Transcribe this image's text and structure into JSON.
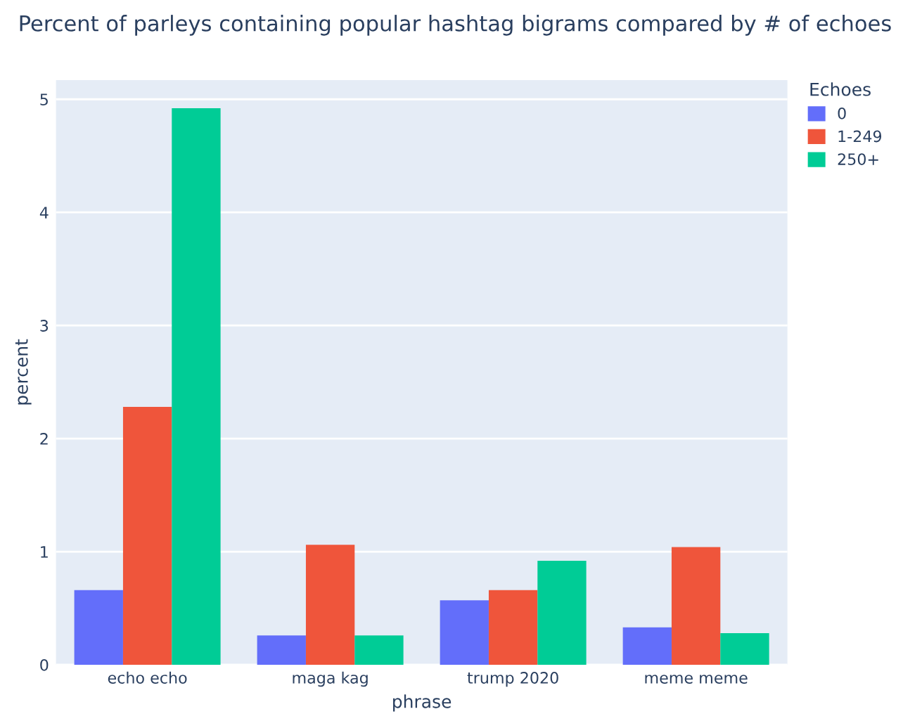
{
  "chart_data": {
    "type": "bar",
    "title": "Percent of parleys containing popular hashtag bigrams compared by # of echoes",
    "xlabel": "phrase",
    "ylabel": "percent",
    "legend_title": "Echoes",
    "categories": [
      "echo echo",
      "maga kag",
      "trump 2020",
      "meme meme"
    ],
    "series": [
      {
        "name": "0",
        "color": "#636efa",
        "values": [
          0.66,
          0.26,
          0.57,
          0.33
        ]
      },
      {
        "name": "1-249",
        "color": "#ef553b",
        "values": [
          2.28,
          1.06,
          0.66,
          1.04
        ]
      },
      {
        "name": "250+",
        "color": "#00cc96",
        "values": [
          4.92,
          0.26,
          0.92,
          0.28
        ]
      }
    ],
    "ylim": [
      0,
      5.17
    ],
    "yticks": [
      0,
      1,
      2,
      3,
      4,
      5
    ],
    "grid": "y",
    "legend": "top right"
  }
}
